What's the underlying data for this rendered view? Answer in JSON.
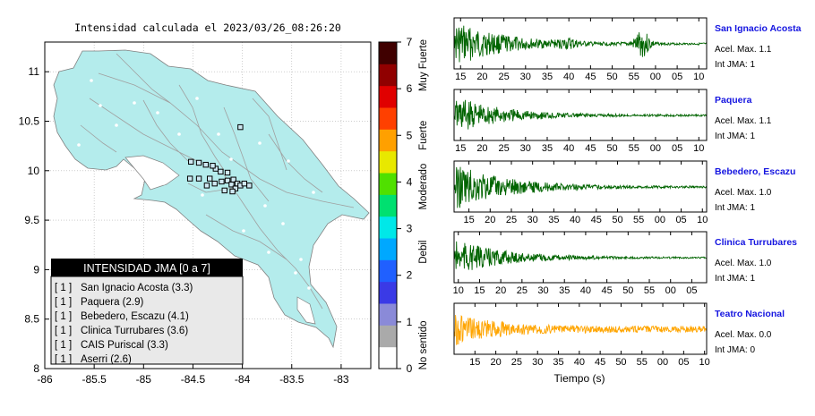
{
  "map": {
    "title": "Intensidad calculada el 2023/03/26_08:26:20",
    "x_ticks": [
      "-86",
      "-85.5",
      "-85",
      "-84.5",
      "-84",
      "-83.5",
      "-83"
    ],
    "x_tick_values": [
      -86,
      -85.5,
      -85,
      -84.5,
      -84,
      -83.5,
      -83
    ],
    "y_ticks": [
      "11",
      "10.5",
      "10",
      "9.5",
      "9",
      "8.5",
      "8"
    ],
    "y_tick_values": [
      11,
      10.5,
      10,
      9.5,
      9,
      8.5,
      8
    ],
    "xlim": [
      -86,
      -82.7
    ],
    "ylim": [
      8,
      11.3
    ],
    "land_color": "#b4ecec",
    "stations": [
      {
        "lon": -84.52,
        "lat": 10.09
      },
      {
        "lon": -84.44,
        "lat": 10.08
      },
      {
        "lon": -84.37,
        "lat": 10.06
      },
      {
        "lon": -84.27,
        "lat": 10.02
      },
      {
        "lon": -84.3,
        "lat": 10.05
      },
      {
        "lon": -84.22,
        "lat": 9.99
      },
      {
        "lon": -84.15,
        "lat": 9.98
      },
      {
        "lon": -84.53,
        "lat": 9.92
      },
      {
        "lon": -84.44,
        "lat": 9.92
      },
      {
        "lon": -84.33,
        "lat": 9.92
      },
      {
        "lon": -84.28,
        "lat": 9.87
      },
      {
        "lon": -84.21,
        "lat": 9.89
      },
      {
        "lon": -84.15,
        "lat": 9.9
      },
      {
        "lon": -84.09,
        "lat": 9.91
      },
      {
        "lon": -84.11,
        "lat": 9.86
      },
      {
        "lon": -84.05,
        "lat": 9.87
      },
      {
        "lon": -84.02,
        "lat": 9.85
      },
      {
        "lon": -83.98,
        "lat": 9.87
      },
      {
        "lon": -84.07,
        "lat": 9.82
      },
      {
        "lon": -84.1,
        "lat": 9.79
      },
      {
        "lon": -84.36,
        "lat": 9.85
      },
      {
        "lon": -84.02,
        "lat": 10.44
      },
      {
        "lon": -84.18,
        "lat": 9.8
      },
      {
        "lon": -83.93,
        "lat": 9.85
      }
    ]
  },
  "legend": {
    "title": "INTENSIDAD JMA [0 a 7]",
    "items": [
      {
        "badge": "[ 1 ]",
        "label": "San Ignacio Acosta (3.3)"
      },
      {
        "badge": "[ 1 ]",
        "label": "Paquera (2.9)"
      },
      {
        "badge": "[ 1 ]",
        "label": "Bebedero, Escazu (4.1)"
      },
      {
        "badge": "[ 1 ]",
        "label": "Clinica Turrubares (3.6)"
      },
      {
        "badge": "[ 1 ]",
        "label": "CAIS Puriscal (3.3)"
      },
      {
        "badge": "[ 1 ]",
        "label": "Aserri (2.6)"
      }
    ]
  },
  "colorbar": {
    "ticks": [
      "0",
      "1",
      "2",
      "3",
      "4",
      "5",
      "6",
      "7"
    ],
    "tick_values": [
      0,
      1,
      2,
      3,
      4,
      5,
      6,
      7
    ],
    "categories": [
      "No sentido",
      "Debil",
      "Moderado",
      "Fuerte",
      "Muy Fuerte"
    ],
    "category_values": [
      0.5,
      2.5,
      3.9,
      5.0,
      6.5
    ],
    "colors": [
      "#ffffff",
      "#aaaaaa",
      "#8a8ad8",
      "#3a3ae6",
      "#2060ff",
      "#00a8ff",
      "#00e8e8",
      "#00e070",
      "#50e000",
      "#e8e800",
      "#ffa000",
      "#ff4000",
      "#e00000",
      "#900000",
      "#400000"
    ]
  },
  "waveforms": {
    "xlabel": "Tiempo (s)",
    "panels": [
      {
        "station": "San Ignacio Acosta",
        "accel": "Acel. Max. 1.1",
        "jma": "Int JMA: 1",
        "ticks": [
          "15",
          "20",
          "25",
          "30",
          "35",
          "40",
          "45",
          "50",
          "55",
          "00",
          "05",
          "10"
        ],
        "color": "#006400",
        "start": 13.5,
        "end": 71.8,
        "burst": 57,
        "amp": 0.95
      },
      {
        "station": "Paquera",
        "accel": "Acel. Max. 1.1",
        "jma": "Int JMA: 1",
        "ticks": [
          "15",
          "20",
          "25",
          "30",
          "35",
          "40",
          "45",
          "50",
          "55",
          "00",
          "05",
          "10"
        ],
        "color": "#006400",
        "start": 13.5,
        "end": 71.8,
        "burst": null,
        "amp": 0.8
      },
      {
        "station": "Bebedero, Escazu",
        "accel": "Acel. Max. 1.0",
        "jma": "Int JMA: 1",
        "ticks": [
          "15",
          "20",
          "25",
          "30",
          "35",
          "40",
          "45",
          "50",
          "55",
          "00",
          "05",
          "10"
        ],
        "color": "#006400",
        "start": 11.5,
        "end": 71.0,
        "burst": null,
        "amp": 1.0
      },
      {
        "station": "Clinica Turrubares",
        "accel": "Acel. Max. 1.0",
        "jma": "Int JMA: 1",
        "ticks": [
          "10",
          "15",
          "20",
          "25",
          "30",
          "35",
          "40",
          "45",
          "50",
          "55",
          "00",
          "05"
        ],
        "color": "#006400",
        "start": 9.0,
        "end": 68.5,
        "burst": null,
        "amp": 0.75
      },
      {
        "station": "Teatro Nacional",
        "accel": "Acel. Max. 0.0",
        "jma": "Int JMA: 0",
        "ticks": [
          "15",
          "20",
          "25",
          "30",
          "35",
          "40",
          "45",
          "50",
          "55",
          "00",
          "05",
          "10"
        ],
        "color": "#ffa500",
        "start": 10.0,
        "end": 70.5,
        "burst": null,
        "amp": 0.75
      }
    ]
  },
  "chart_data": [
    {
      "type": "scatter",
      "title": "Intensidad calculada el 2023/03/26_08:26:20",
      "xlim": [
        -86,
        -82.7
      ],
      "ylim": [
        8,
        11.3
      ],
      "colorbar": {
        "range": [
          0,
          7
        ],
        "labels": [
          "No sentido",
          "Debil",
          "Moderado",
          "Fuerte",
          "Muy Fuerte"
        ]
      },
      "legend": {
        "title": "INTENSIDAD JMA [0 a 7]",
        "placement": "bottom-left",
        "entries": [
          {
            "station": "San Ignacio Acosta",
            "jma": 1,
            "value": 3.3
          },
          {
            "station": "Paquera",
            "jma": 1,
            "value": 2.9
          },
          {
            "station": "Bebedero, Escazu",
            "jma": 1,
            "value": 4.1
          },
          {
            "station": "Clinica Turrubares",
            "jma": 1,
            "value": 3.6
          },
          {
            "station": "CAIS Puriscal",
            "jma": 1,
            "value": 3.3
          },
          {
            "station": "Aserri",
            "jma": 1,
            "value": 2.6
          }
        ]
      }
    },
    {
      "type": "line",
      "xlabel": "Tiempo (s)",
      "series": [
        {
          "name": "San Ignacio Acosta",
          "acel_max": 1.1,
          "int_jma": 1
        },
        {
          "name": "Paquera",
          "acel_max": 1.1,
          "int_jma": 1
        },
        {
          "name": "Bebedero, Escazu",
          "acel_max": 1.0,
          "int_jma": 1
        },
        {
          "name": "Clinica Turrubares",
          "acel_max": 1.0,
          "int_jma": 1
        },
        {
          "name": "Teatro Nacional",
          "acel_max": 0.0,
          "int_jma": 0
        }
      ]
    }
  ]
}
